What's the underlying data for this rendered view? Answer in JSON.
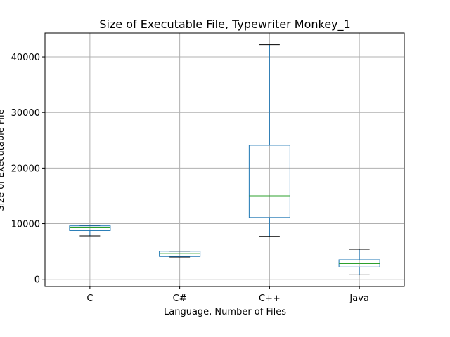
{
  "chart_data": {
    "type": "box",
    "title": "Size of Executable File, Typewriter Monkey_1",
    "xlabel": "Language, Number of Files",
    "ylabel": "Size of Executable File",
    "categories": [
      "C",
      "C#",
      "C++",
      "Java"
    ],
    "boxes": [
      {
        "category": "C",
        "whisker_low": 7800,
        "q1": 8750,
        "median": 9250,
        "q3": 9600,
        "whisker_high": 9700
      },
      {
        "category": "C#",
        "whisker_low": 4000,
        "q1": 4100,
        "median": 4650,
        "q3": 5050,
        "whisker_high": 5050
      },
      {
        "category": "C++",
        "whisker_low": 7700,
        "q1": 11100,
        "median": 15000,
        "q3": 24100,
        "whisker_high": 42200
      },
      {
        "category": "Java",
        "whisker_low": 800,
        "q1": 2200,
        "median": 2800,
        "q3": 3500,
        "whisker_high": 5400
      }
    ],
    "yticks": [
      0,
      10000,
      20000,
      30000,
      40000
    ],
    "ytick_labels": [
      "0",
      "10000",
      "20000",
      "30000",
      "40000"
    ],
    "ylim": [
      -1300,
      44300
    ],
    "grid": true,
    "colors": {
      "box": "#1f77b4",
      "median": "#2ca02c",
      "caps": "#000000",
      "grid": "#b0b0b0"
    }
  }
}
